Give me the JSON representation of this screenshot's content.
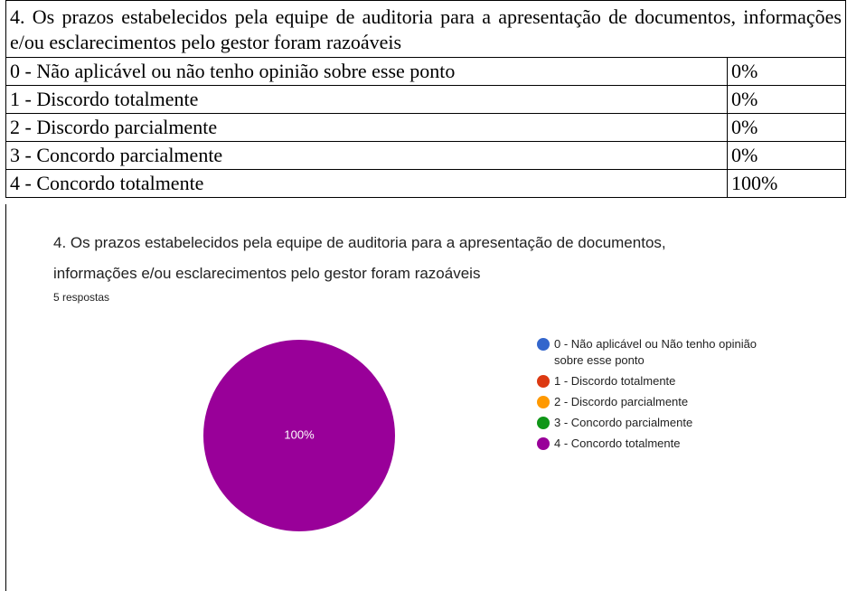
{
  "table": {
    "header": "4. Os prazos estabelecidos pela equipe de auditoria para a apresentação de documentos, informações e/ou esclarecimentos pelo gestor foram razoáveis",
    "rows": [
      [
        "0 - Não aplicável ou não tenho opinião sobre esse ponto",
        "0%"
      ],
      [
        "1 - Discordo totalmente",
        "0%"
      ],
      [
        "2 - Discordo parcialmente",
        "0%"
      ],
      [
        "3 - Concordo parcialmente",
        "0%"
      ],
      [
        "4 - Concordo totalmente",
        "100%"
      ]
    ]
  },
  "chart_data": {
    "type": "pie",
    "title": "4. Os prazos estabelecidos pela equipe de auditoria para a apresentação de documentos, informações e/ou esclarecimentos pelo gestor foram razoáveis",
    "subtitle": "5 respostas",
    "categories": [
      "0 - Não aplicável ou Não tenho opinião sobre esse ponto",
      "1 - Discordo totalmente",
      "2 - Discordo parcialmente",
      "3 - Concordo parcialmente",
      "4 - Concordo totalmente"
    ],
    "values": [
      0,
      0,
      0,
      0,
      100
    ],
    "value_labels": [
      null,
      null,
      null,
      null,
      "100%"
    ],
    "colors": [
      "#3366cc",
      "#dc3912",
      "#ff9900",
      "#109618",
      "#990099"
    ]
  }
}
